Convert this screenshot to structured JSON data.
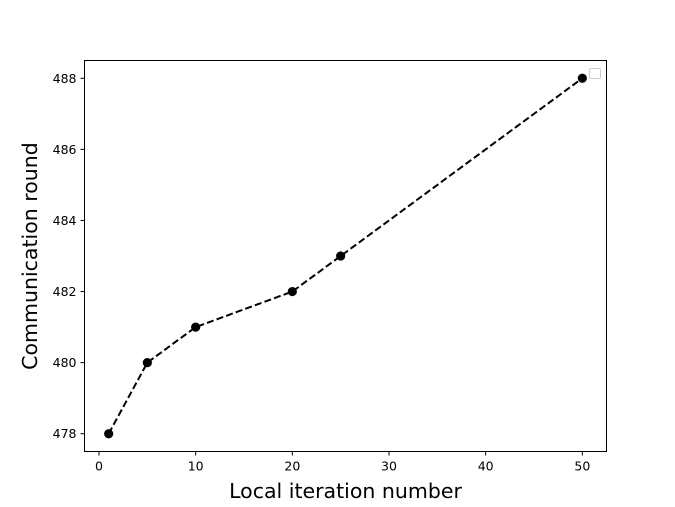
{
  "chart_data": {
    "type": "line",
    "title": "",
    "xlabel": "Local iteration number",
    "ylabel": "Communication round",
    "xlim": [
      -1.5,
      52.5
    ],
    "ylim": [
      477.5,
      488.5
    ],
    "xticks": [
      0,
      10,
      20,
      30,
      40,
      50
    ],
    "yticks": [
      478,
      480,
      482,
      484,
      486,
      488
    ],
    "grid": false,
    "legend": {
      "placement": "top-right",
      "entries": []
    },
    "series": [
      {
        "x": [
          1,
          5,
          10,
          20,
          25,
          50
        ],
        "y": [
          478,
          480,
          481,
          482,
          483,
          488
        ],
        "color": "#000000",
        "line_style": "dashed",
        "marker": "circle"
      }
    ]
  }
}
